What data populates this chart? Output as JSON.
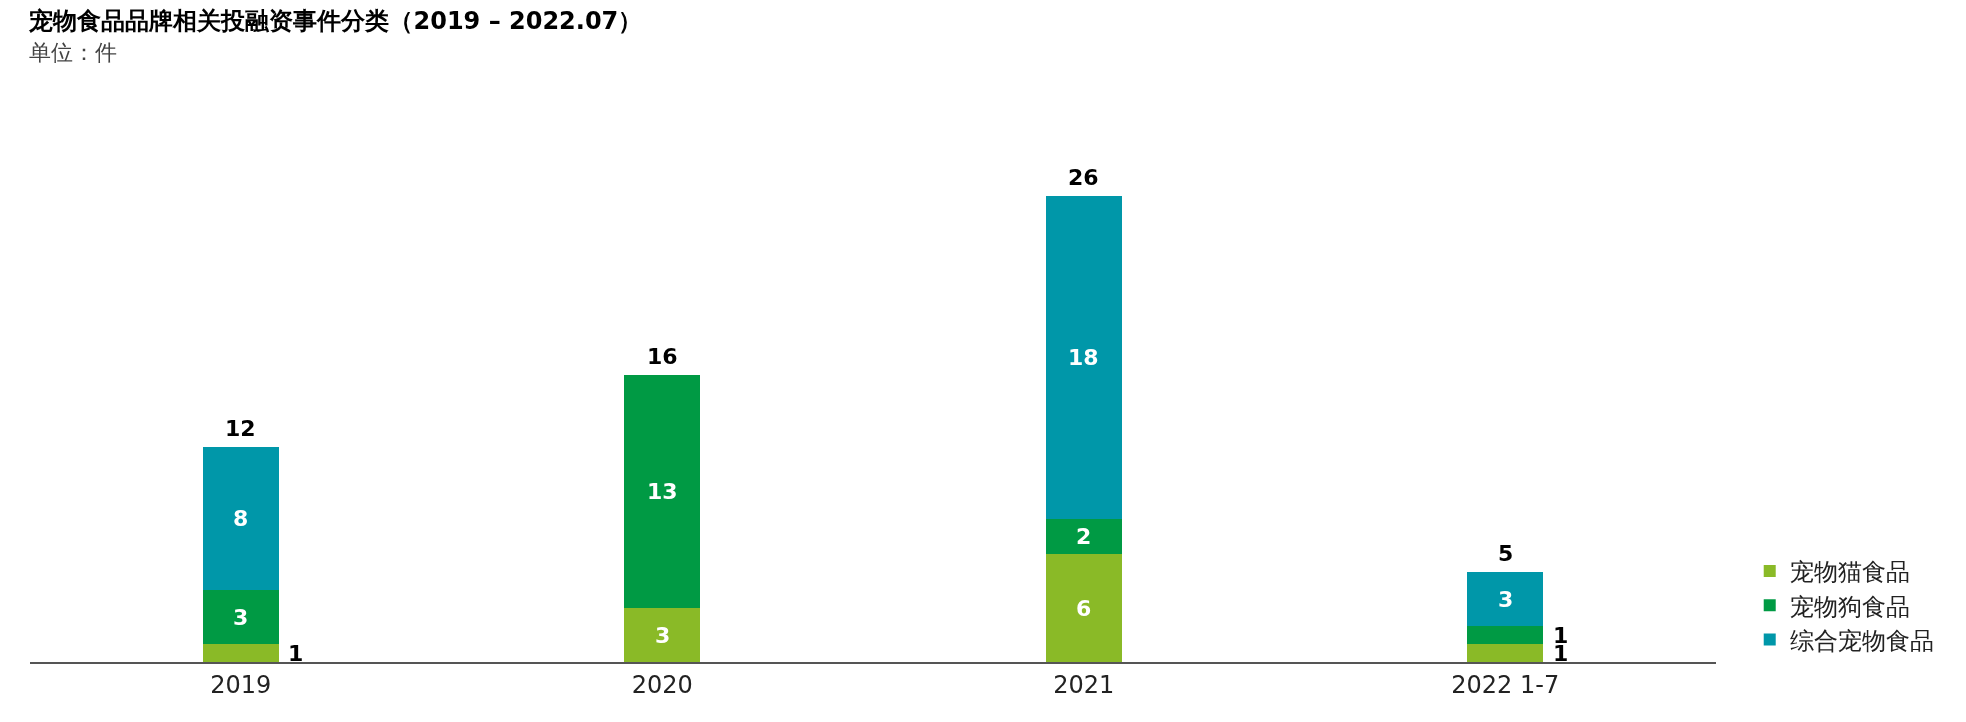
{
  "chart_data": {
    "type": "bar",
    "title": "宠物食品品牌相关投融资事件分类（2019 – 2022.07）",
    "subtitle": "单位：件",
    "categories": [
      "2019",
      "2020",
      "2021",
      "2022 1-7"
    ],
    "stacked": true,
    "series": [
      {
        "name": "宠物猫食品",
        "color": "#8aba27",
        "values": [
          1,
          3,
          6,
          1
        ],
        "value_labels": [
          "1",
          "3",
          "6",
          "1"
        ]
      },
      {
        "name": "宠物狗食品",
        "color": "#009a44",
        "values": [
          3,
          13,
          2,
          1
        ],
        "value_labels": [
          "3",
          "13",
          "2",
          "1"
        ]
      },
      {
        "name": "综合宠物食品",
        "color": "#0097a9",
        "values": [
          8,
          0,
          18,
          3
        ],
        "value_labels": [
          "8",
          null,
          "18",
          "3"
        ]
      }
    ],
    "totals": [
      "12",
      "16",
      "26",
      "5"
    ],
    "legend": "right"
  }
}
